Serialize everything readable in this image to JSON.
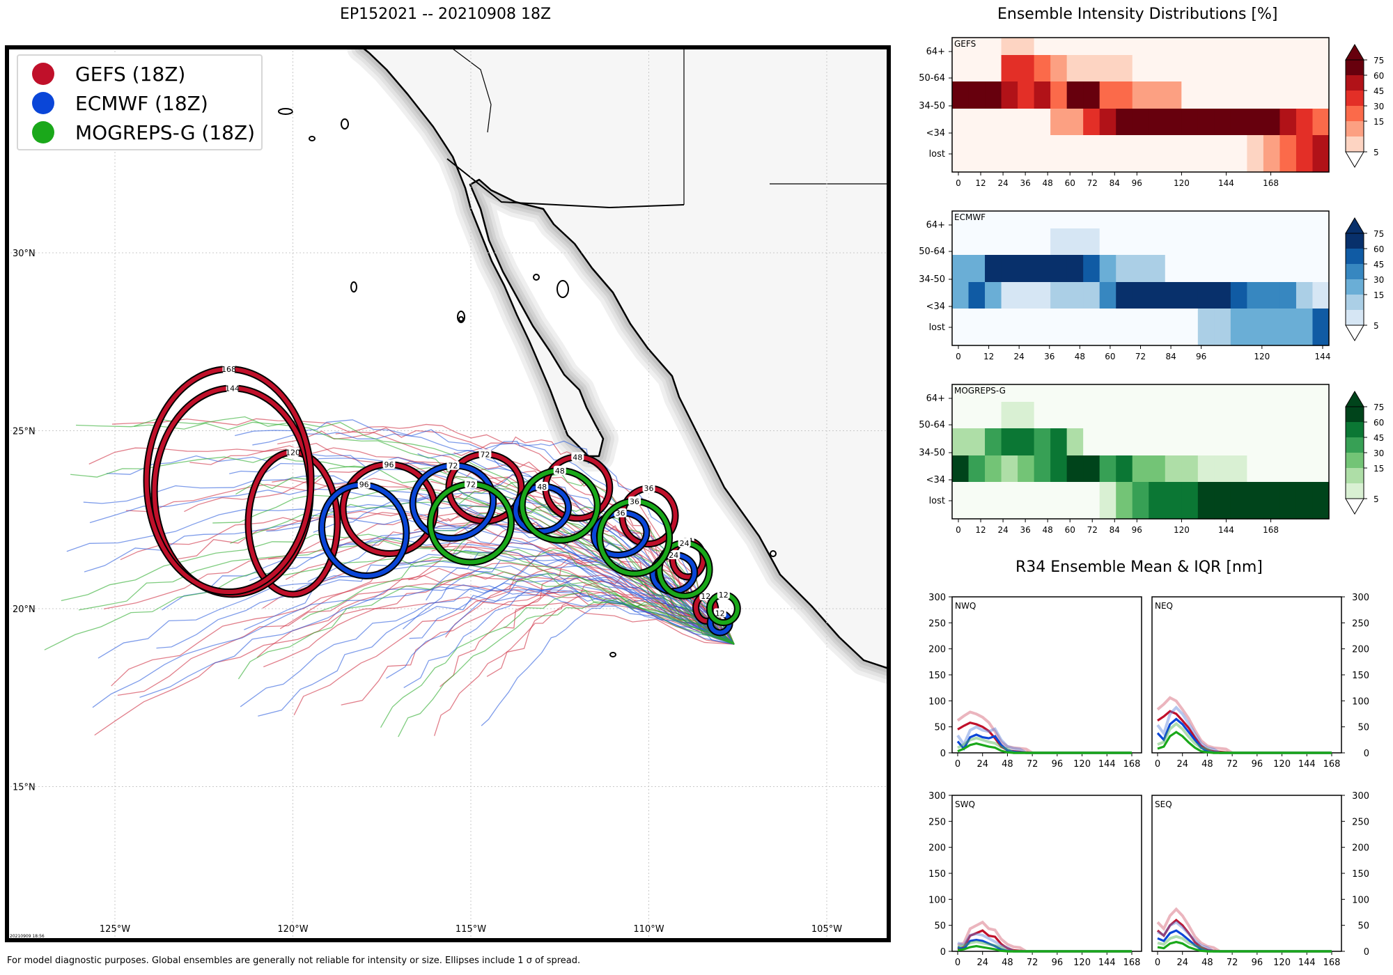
{
  "header": {
    "map_title": "EP152021 -- 20210908 18Z",
    "intensity_title": "Ensemble Intensity Distributions [%]",
    "r34_title": "R34 Ensemble Mean & IQR [nm]"
  },
  "legend": {
    "items": [
      {
        "label": "GEFS (18Z)",
        "color": "#c0102a"
      },
      {
        "label": "ECMWF (18Z)",
        "color": "#0a46d8"
      },
      {
        "label": "MOGREPS-G (18Z)",
        "color": "#1aa81a"
      }
    ]
  },
  "map": {
    "lon_labels": [
      "125°W",
      "120°W",
      "115°W",
      "110°W",
      "105°W"
    ],
    "lat_labels": [
      "30°N",
      "25°N",
      "20°N",
      "15°N"
    ],
    "stamp": "20210909 18:56",
    "ellipses": [
      {
        "model": "GEFS",
        "lon": -108.4,
        "lat": 20.0,
        "hours": "12"
      },
      {
        "model": "GEFS",
        "lon": -108.9,
        "lat": 21.4,
        "hours": "24"
      },
      {
        "model": "GEFS",
        "lon": -110.0,
        "lat": 22.6,
        "hours": "36"
      },
      {
        "model": "GEFS",
        "lon": -112.0,
        "lat": 23.4,
        "hours": "48"
      },
      {
        "model": "GEFS",
        "lon": -114.6,
        "lat": 23.4,
        "hours": "72"
      },
      {
        "model": "GEFS",
        "lon": -117.3,
        "lat": 22.8,
        "hours": "96"
      },
      {
        "model": "GEFS",
        "lon": -120.0,
        "lat": 22.4,
        "hours": "120"
      },
      {
        "model": "GEFS",
        "lon": -121.7,
        "lat": 23.3,
        "hours": "144"
      },
      {
        "model": "GEFS",
        "lon": -121.8,
        "lat": 23.6,
        "hours": "168"
      },
      {
        "model": "ECMWF",
        "lon": -108.0,
        "lat": 19.6,
        "hours": "12"
      },
      {
        "model": "ECMWF",
        "lon": -109.3,
        "lat": 21.0,
        "hours": "24"
      },
      {
        "model": "ECMWF",
        "lon": -110.8,
        "lat": 22.1,
        "hours": "36"
      },
      {
        "model": "ECMWF",
        "lon": -113.0,
        "lat": 22.8,
        "hours": "48"
      },
      {
        "model": "ECMWF",
        "lon": -115.5,
        "lat": 23.0,
        "hours": "72"
      },
      {
        "model": "ECMWF",
        "lon": -118.0,
        "lat": 22.2,
        "hours": "96"
      },
      {
        "model": "MOGREPS-G",
        "lon": -107.9,
        "lat": 20.0,
        "hours": "12"
      },
      {
        "model": "MOGREPS-G",
        "lon": -109.0,
        "lat": 21.1,
        "hours": "24"
      },
      {
        "model": "MOGREPS-G",
        "lon": -110.4,
        "lat": 22.0,
        "hours": "36"
      },
      {
        "model": "MOGREPS-G",
        "lon": -112.5,
        "lat": 22.9,
        "hours": "48"
      },
      {
        "model": "MOGREPS-G",
        "lon": -115.0,
        "lat": 22.4,
        "hours": "72"
      }
    ]
  },
  "intensity": {
    "row_labels": [
      "64+",
      "50-64",
      "34-50",
      "<34",
      "lost"
    ],
    "scale_labels": [
      "75",
      "60",
      "45",
      "30",
      "15",
      "5"
    ],
    "panels": [
      {
        "name": "GEFS",
        "x_ticks": [
          "0",
          "12",
          "24",
          "36",
          "48",
          "60",
          "72",
          "84",
          "96",
          "120",
          "144",
          "168"
        ],
        "cells": [
          [
            0,
            0,
            0,
            5,
            5,
            0,
            0,
            0,
            0,
            0,
            0,
            0,
            0,
            0,
            0,
            0,
            0,
            0,
            0,
            0,
            0,
            0,
            0
          ],
          [
            0,
            0,
            0,
            45,
            45,
            30,
            20,
            5,
            5,
            5,
            5,
            0,
            0,
            0,
            0,
            0,
            0,
            0,
            0,
            0,
            0,
            0,
            0
          ],
          [
            80,
            80,
            80,
            60,
            45,
            60,
            40,
            75,
            75,
            40,
            40,
            20,
            20,
            15,
            0,
            0,
            0,
            0,
            0,
            0,
            0,
            0,
            0
          ],
          [
            0,
            0,
            0,
            0,
            0,
            0,
            15,
            25,
            45,
            60,
            80,
            80,
            80,
            80,
            80,
            80,
            80,
            80,
            80,
            80,
            60,
            50,
            30
          ],
          [
            0,
            0,
            0,
            0,
            0,
            0,
            0,
            0,
            0,
            0,
            0,
            0,
            0,
            0,
            0,
            0,
            0,
            0,
            5,
            20,
            40,
            55,
            70
          ]
        ]
      },
      {
        "name": "ECMWF",
        "x_ticks": [
          "0",
          "12",
          "24",
          "36",
          "48",
          "60",
          "72",
          "84",
          "96",
          "120",
          "144"
        ],
        "cells": [
          [
            0,
            0,
            0,
            0,
            0,
            0,
            0,
            0,
            0,
            0,
            0,
            0,
            0,
            0,
            0,
            0,
            0,
            0,
            0,
            0,
            0,
            0,
            0
          ],
          [
            0,
            0,
            0,
            0,
            0,
            0,
            5,
            5,
            5,
            0,
            0,
            0,
            0,
            0,
            0,
            0,
            0,
            0,
            0,
            0,
            0,
            0,
            0
          ],
          [
            40,
            40,
            80,
            80,
            80,
            80,
            80,
            80,
            60,
            30,
            20,
            15,
            15,
            0,
            0,
            0,
            0,
            0,
            0,
            0,
            0,
            0,
            0
          ],
          [
            40,
            60,
            30,
            10,
            10,
            10,
            20,
            20,
            20,
            50,
            80,
            80,
            80,
            80,
            80,
            80,
            80,
            60,
            45,
            45,
            45,
            25,
            10
          ],
          [
            0,
            0,
            0,
            0,
            0,
            0,
            0,
            0,
            0,
            0,
            0,
            0,
            0,
            0,
            0,
            15,
            25,
            30,
            40,
            40,
            40,
            40,
            70
          ]
        ]
      },
      {
        "name": "MOGREPS-G",
        "x_ticks": [
          "0",
          "12",
          "24",
          "36",
          "48",
          "60",
          "72",
          "84",
          "96",
          "120",
          "144",
          "168"
        ],
        "cells": [
          [
            0,
            0,
            0,
            0,
            0,
            0,
            0,
            0,
            0,
            0,
            0,
            0,
            0,
            0,
            0,
            0,
            0,
            0,
            0,
            0,
            0,
            0,
            0
          ],
          [
            0,
            0,
            0,
            10,
            10,
            0,
            0,
            0,
            0,
            0,
            0,
            0,
            0,
            0,
            0,
            0,
            0,
            0,
            0,
            0,
            0,
            0,
            0
          ],
          [
            20,
            20,
            45,
            60,
            60,
            45,
            60,
            20,
            0,
            0,
            0,
            0,
            0,
            0,
            0,
            0,
            0,
            0,
            0,
            0,
            0,
            0,
            0
          ],
          [
            80,
            45,
            30,
            15,
            30,
            45,
            70,
            80,
            80,
            45,
            60,
            30,
            30,
            20,
            20,
            10,
            10,
            10,
            0,
            0,
            0,
            0,
            0
          ],
          [
            0,
            0,
            0,
            0,
            0,
            0,
            0,
            0,
            0,
            10,
            30,
            45,
            60,
            70,
            70,
            80,
            80,
            80,
            80,
            80,
            80,
            80,
            80
          ]
        ]
      }
    ]
  },
  "r34": {
    "y_ticks": [
      "300",
      "250",
      "200",
      "150",
      "100",
      "50",
      "0"
    ],
    "x_ticks": [
      "0",
      "24",
      "48",
      "72",
      "96",
      "120",
      "144",
      "168"
    ],
    "quadrants": [
      {
        "name": "NWQ",
        "gefs": [
          45,
          52,
          58,
          55,
          50,
          42,
          28,
          12,
          5,
          3,
          2,
          1,
          0,
          0,
          0,
          0,
          0,
          0,
          0,
          0,
          0,
          0,
          0,
          0,
          0,
          0,
          0,
          0,
          0
        ],
        "ecmwf": [
          22,
          8,
          30,
          35,
          30,
          28,
          32,
          15,
          5,
          2,
          1,
          0,
          0,
          0,
          0,
          0,
          0,
          0,
          0,
          0,
          0,
          0,
          0,
          0,
          0,
          0,
          0,
          0,
          0
        ],
        "mogreps": [
          3,
          8,
          15,
          18,
          15,
          12,
          10,
          4,
          1,
          0,
          0,
          0,
          0,
          0,
          0,
          0,
          0,
          0,
          0,
          0,
          0,
          0,
          0,
          0,
          0,
          0,
          0,
          0,
          0
        ]
      },
      {
        "name": "NEQ",
        "gefs": [
          62,
          70,
          80,
          75,
          62,
          48,
          30,
          14,
          6,
          3,
          2,
          1,
          0,
          0,
          0,
          0,
          0,
          0,
          0,
          0,
          0,
          0,
          0,
          0,
          0,
          0,
          0,
          0,
          0
        ],
        "ecmwf": [
          38,
          25,
          55,
          65,
          55,
          40,
          25,
          10,
          3,
          1,
          0,
          0,
          0,
          0,
          0,
          0,
          0,
          0,
          0,
          0,
          0,
          0,
          0,
          0,
          0,
          0,
          0,
          0,
          0
        ],
        "mogreps": [
          8,
          12,
          32,
          40,
          32,
          20,
          10,
          3,
          1,
          0,
          0,
          0,
          0,
          0,
          0,
          0,
          0,
          0,
          0,
          0,
          0,
          0,
          0,
          0,
          0,
          0,
          0,
          0,
          0
        ]
      },
      {
        "name": "SWQ",
        "gefs": [
          5,
          8,
          30,
          35,
          40,
          30,
          28,
          14,
          6,
          2,
          1,
          0,
          0,
          0,
          0,
          0,
          0,
          0,
          0,
          0,
          0,
          0,
          0,
          0,
          0,
          0,
          0,
          0,
          0
        ],
        "ecmwf": [
          8,
          5,
          20,
          22,
          20,
          15,
          10,
          4,
          1,
          0,
          0,
          0,
          0,
          0,
          0,
          0,
          0,
          0,
          0,
          0,
          0,
          0,
          0,
          0,
          0,
          0,
          0,
          0,
          0
        ],
        "mogreps": [
          2,
          4,
          8,
          10,
          8,
          6,
          4,
          1,
          0,
          0,
          0,
          0,
          0,
          0,
          0,
          0,
          0,
          0,
          0,
          0,
          0,
          0,
          0,
          0,
          0,
          0,
          0,
          0,
          0
        ]
      },
      {
        "name": "SEQ",
        "gefs": [
          40,
          30,
          50,
          60,
          50,
          35,
          18,
          8,
          3,
          1,
          0,
          0,
          0,
          0,
          0,
          0,
          0,
          0,
          0,
          0,
          0,
          0,
          0,
          0,
          0,
          0,
          0,
          0,
          0
        ],
        "ecmwf": [
          25,
          20,
          35,
          40,
          32,
          22,
          12,
          4,
          1,
          0,
          0,
          0,
          0,
          0,
          0,
          0,
          0,
          0,
          0,
          0,
          0,
          0,
          0,
          0,
          0,
          0,
          0,
          0,
          0
        ],
        "mogreps": [
          8,
          6,
          15,
          18,
          15,
          8,
          4,
          1,
          0,
          0,
          0,
          0,
          0,
          0,
          0,
          0,
          0,
          0,
          0,
          0,
          0,
          0,
          0,
          0,
          0,
          0,
          0,
          0,
          0
        ]
      }
    ]
  },
  "footer": {
    "note": "For model diagnostic purposes. Global ensembles are generally not reliable for intensity or size. Ellipses include 1 σ of spread."
  },
  "colors": {
    "gefs": "#c0102a",
    "ecmwf": "#0a46d8",
    "mogreps": "#1aa81a"
  }
}
